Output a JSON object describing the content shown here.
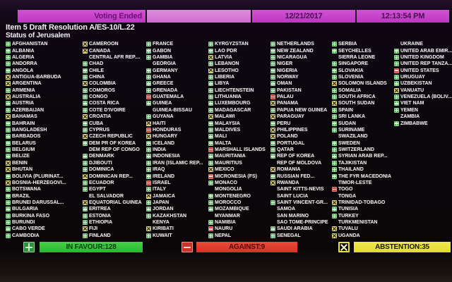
{
  "top_bar": {
    "status": "Voting Ended",
    "date": "12/21/2017",
    "time": "12:13:54 PM"
  },
  "header": {
    "title": "Item 5 Draft Resolution A/ES-10/L.22",
    "subtitle": "Status of Jerusalem"
  },
  "vote_legend": {
    "Y": "in-favour",
    "N": "against",
    "A": "abstention",
    "": "no-vote"
  },
  "colors": {
    "bar_magenta": "#c33cc7",
    "favour_green": "#2fc42f",
    "against_red": "#e1392b",
    "abstention_yellow": "#eae23e"
  },
  "summary": {
    "in_favour_label": "IN FAVOUR:128",
    "against_label": "AGAINST:9",
    "abstention_label": "ABSTENTION:35",
    "in_favour_count": 128,
    "against_count": 9,
    "abstention_count": 35
  },
  "countries": [
    {
      "name": "AFGHANISTAN",
      "vote": "Y"
    },
    {
      "name": "ALBANIA",
      "vote": "Y"
    },
    {
      "name": "ALGERIA",
      "vote": "Y"
    },
    {
      "name": "ANDORRA",
      "vote": "Y"
    },
    {
      "name": "ANGOLA",
      "vote": "Y"
    },
    {
      "name": "ANTIGUA-BARBUDA",
      "vote": "A"
    },
    {
      "name": "ARGENTINA",
      "vote": "A"
    },
    {
      "name": "ARMENIA",
      "vote": "Y"
    },
    {
      "name": "AUSTRALIA",
      "vote": "A"
    },
    {
      "name": "AUSTRIA",
      "vote": "Y"
    },
    {
      "name": "AZERBAIJAN",
      "vote": "Y"
    },
    {
      "name": "BAHAMAS",
      "vote": "A"
    },
    {
      "name": "BAHRAIN",
      "vote": "Y"
    },
    {
      "name": "BANGLADESH",
      "vote": "Y"
    },
    {
      "name": "BARBADOS",
      "vote": "Y"
    },
    {
      "name": "BELARUS",
      "vote": "Y"
    },
    {
      "name": "BELGIUM",
      "vote": "Y"
    },
    {
      "name": "BELIZE",
      "vote": "Y"
    },
    {
      "name": "BENIN",
      "vote": "A"
    },
    {
      "name": "BHUTAN",
      "vote": "A"
    },
    {
      "name": "BOLIVIA (PLURINAT...",
      "vote": "Y"
    },
    {
      "name": "BOSNIA-HERZEGOVI...",
      "vote": "A"
    },
    {
      "name": "BOTSWANA",
      "vote": "Y"
    },
    {
      "name": "BRAZIL",
      "vote": "Y"
    },
    {
      "name": "BRUNEI DARUSSAL...",
      "vote": "Y"
    },
    {
      "name": "BULGARIA",
      "vote": "Y"
    },
    {
      "name": "BURKINA FASO",
      "vote": "Y"
    },
    {
      "name": "BURUNDI",
      "vote": "Y"
    },
    {
      "name": "CABO VERDE",
      "vote": "Y"
    },
    {
      "name": "CAMBODIA",
      "vote": "Y"
    },
    {
      "name": "CAMEROON",
      "vote": "A"
    },
    {
      "name": "CANADA",
      "vote": "A"
    },
    {
      "name": "CENTRAL AFR REP....",
      "vote": ""
    },
    {
      "name": "CHAD",
      "vote": "Y"
    },
    {
      "name": "CHILE",
      "vote": "Y"
    },
    {
      "name": "CHINA",
      "vote": "Y"
    },
    {
      "name": "COLOMBIA",
      "vote": "A"
    },
    {
      "name": "COMOROS",
      "vote": "Y"
    },
    {
      "name": "CONGO",
      "vote": "Y"
    },
    {
      "name": "COSTA RICA",
      "vote": "Y"
    },
    {
      "name": "COTE D'IVOIRE",
      "vote": "Y"
    },
    {
      "name": "CROATIA",
      "vote": "A"
    },
    {
      "name": "CUBA",
      "vote": "Y"
    },
    {
      "name": "CYPRUS",
      "vote": "Y"
    },
    {
      "name": "CZECH REPUBLIC",
      "vote": "A"
    },
    {
      "name": "DEM PR OF KOREA",
      "vote": "Y"
    },
    {
      "name": "DEM REP OF CONGO",
      "vote": ""
    },
    {
      "name": "DENMARK",
      "vote": "Y"
    },
    {
      "name": "DJIBOUTI",
      "vote": "Y"
    },
    {
      "name": "DOMINICA",
      "vote": "Y"
    },
    {
      "name": "DOMINICAN REP...",
      "vote": "A"
    },
    {
      "name": "ECUADOR",
      "vote": "Y"
    },
    {
      "name": "EGYPT",
      "vote": "Y"
    },
    {
      "name": "EL SALVADOR",
      "vote": ""
    },
    {
      "name": "EQUATORIAL GUINEA",
      "vote": "A"
    },
    {
      "name": "ERITREA",
      "vote": "Y"
    },
    {
      "name": "ESTONIA",
      "vote": "Y"
    },
    {
      "name": "ETHIOPIA",
      "vote": "Y"
    },
    {
      "name": "FIJI",
      "vote": "A"
    },
    {
      "name": "FINLAND",
      "vote": "Y"
    },
    {
      "name": "FRANCE",
      "vote": "Y"
    },
    {
      "name": "GABON",
      "vote": "Y"
    },
    {
      "name": "GAMBIA",
      "vote": "Y"
    },
    {
      "name": "GEORGIA",
      "vote": ""
    },
    {
      "name": "GERMANY",
      "vote": "Y"
    },
    {
      "name": "GHANA",
      "vote": "Y"
    },
    {
      "name": "GREECE",
      "vote": "Y"
    },
    {
      "name": "GRENADA",
      "vote": "Y"
    },
    {
      "name": "GUATEMALA",
      "vote": "N"
    },
    {
      "name": "GUINEA",
      "vote": "Y"
    },
    {
      "name": "GUINEA-BISSAU",
      "vote": ""
    },
    {
      "name": "GUYANA",
      "vote": "Y"
    },
    {
      "name": "HAITI",
      "vote": "A"
    },
    {
      "name": "HONDURAS",
      "vote": "N"
    },
    {
      "name": "HUNGARY",
      "vote": "A"
    },
    {
      "name": "ICELAND",
      "vote": "Y"
    },
    {
      "name": "INDIA",
      "vote": "Y"
    },
    {
      "name": "INDONESIA",
      "vote": "Y"
    },
    {
      "name": "IRAN (ISLAMIC REP...",
      "vote": "Y"
    },
    {
      "name": "IRAQ",
      "vote": "Y"
    },
    {
      "name": "IRELAND",
      "vote": "Y"
    },
    {
      "name": "ISRAEL",
      "vote": "N"
    },
    {
      "name": "ITALY",
      "vote": "Y"
    },
    {
      "name": "JAMAICA",
      "vote": "A"
    },
    {
      "name": "JAPAN",
      "vote": "Y"
    },
    {
      "name": "JORDAN",
      "vote": "Y"
    },
    {
      "name": "KAZAKHSTAN",
      "vote": "Y"
    },
    {
      "name": "KENYA",
      "vote": ""
    },
    {
      "name": "KIRIBATI",
      "vote": "A"
    },
    {
      "name": "KUWAIT",
      "vote": "Y"
    },
    {
      "name": "KYRGYZSTAN",
      "vote": "Y"
    },
    {
      "name": "LAO PDR",
      "vote": "Y"
    },
    {
      "name": "LATVIA",
      "vote": "A"
    },
    {
      "name": "LEBANON",
      "vote": "Y"
    },
    {
      "name": "LESOTHO",
      "vote": "A"
    },
    {
      "name": "LIBERIA",
      "vote": "Y"
    },
    {
      "name": "LIBYA",
      "vote": "Y"
    },
    {
      "name": "LIECHTENSTEIN",
      "vote": "Y"
    },
    {
      "name": "LITHUANIA",
      "vote": "Y"
    },
    {
      "name": "LUXEMBOURG",
      "vote": "Y"
    },
    {
      "name": "MADAGASCAR",
      "vote": "Y"
    },
    {
      "name": "MALAWI",
      "vote": "A"
    },
    {
      "name": "MALAYSIA",
      "vote": "Y"
    },
    {
      "name": "MALDIVES",
      "vote": "Y"
    },
    {
      "name": "MALI",
      "vote": "Y"
    },
    {
      "name": "MALTA",
      "vote": "Y"
    },
    {
      "name": "MARSHALL ISLANDS",
      "vote": "N"
    },
    {
      "name": "MAURITANIA",
      "vote": "Y"
    },
    {
      "name": "MAURITIUS",
      "vote": "Y"
    },
    {
      "name": "MEXICO",
      "vote": "A"
    },
    {
      "name": "MICRONESIA (FS)",
      "vote": "N"
    },
    {
      "name": "MONACO",
      "vote": "Y"
    },
    {
      "name": "MONGOLIA",
      "vote": ""
    },
    {
      "name": "MONTENEGRO",
      "vote": "Y"
    },
    {
      "name": "MOROCCO",
      "vote": "Y"
    },
    {
      "name": "MOZAMBIQUE",
      "vote": "Y"
    },
    {
      "name": "MYANMAR",
      "vote": ""
    },
    {
      "name": "NAMIBIA",
      "vote": "Y"
    },
    {
      "name": "NAURU",
      "vote": "N"
    },
    {
      "name": "NEPAL",
      "vote": "Y"
    },
    {
      "name": "NETHERLANDS",
      "vote": "Y"
    },
    {
      "name": "NEW ZEALAND",
      "vote": "Y"
    },
    {
      "name": "NICARAGUA",
      "vote": "Y"
    },
    {
      "name": "NIGER",
      "vote": "Y"
    },
    {
      "name": "NIGERIA",
      "vote": "Y"
    },
    {
      "name": "NORWAY",
      "vote": "Y"
    },
    {
      "name": "OMAN",
      "vote": "Y"
    },
    {
      "name": "PAKISTAN",
      "vote": "Y"
    },
    {
      "name": "PALAU",
      "vote": "N"
    },
    {
      "name": "PANAMA",
      "vote": "A"
    },
    {
      "name": "PAPUA NEW GUINEA",
      "vote": "Y"
    },
    {
      "name": "PARAGUAY",
      "vote": "A"
    },
    {
      "name": "PERU",
      "vote": "Y"
    },
    {
      "name": "PHILIPPINES",
      "vote": "A"
    },
    {
      "name": "POLAND",
      "vote": "A"
    },
    {
      "name": "PORTUGAL",
      "vote": "Y"
    },
    {
      "name": "QATAR",
      "vote": "Y"
    },
    {
      "name": "REP OF KOREA",
      "vote": "Y"
    },
    {
      "name": "REP OF MOLDOVA",
      "vote": ""
    },
    {
      "name": "ROMANIA",
      "vote": "A"
    },
    {
      "name": "RUSSIAN FED...",
      "vote": "Y"
    },
    {
      "name": "RWANDA",
      "vote": "A"
    },
    {
      "name": "SAINT KITTS-NEVIS",
      "vote": ""
    },
    {
      "name": "SAINT LUCIA",
      "vote": ""
    },
    {
      "name": "SAINT VINCENT-GR...",
      "vote": "Y"
    },
    {
      "name": "SAMOA",
      "vote": ""
    },
    {
      "name": "SAN MARINO",
      "vote": ""
    },
    {
      "name": "SAO TOME-PRINCIPE",
      "vote": ""
    },
    {
      "name": "SAUDI ARABIA",
      "vote": "Y"
    },
    {
      "name": "SENEGAL",
      "vote": "Y"
    },
    {
      "name": "SERBIA",
      "vote": "Y"
    },
    {
      "name": "SEYCHELLES",
      "vote": "Y"
    },
    {
      "name": "SIERRA LEONE",
      "vote": ""
    },
    {
      "name": "SINGAPORE",
      "vote": "Y"
    },
    {
      "name": "SLOVAKIA",
      "vote": "Y"
    },
    {
      "name": "SLOVENIA",
      "vote": "Y"
    },
    {
      "name": "SOLOMON ISLANDS",
      "vote": "A"
    },
    {
      "name": "SOMALIA",
      "vote": "Y"
    },
    {
      "name": "SOUTH AFRICA",
      "vote": "Y"
    },
    {
      "name": "SOUTH SUDAN",
      "vote": "A"
    },
    {
      "name": "SPAIN",
      "vote": "Y"
    },
    {
      "name": "SRI LANKA",
      "vote": "Y"
    },
    {
      "name": "SUDAN",
      "vote": "Y"
    },
    {
      "name": "SURINAME",
      "vote": "Y"
    },
    {
      "name": "SWAZILAND",
      "vote": ""
    },
    {
      "name": "SWEDEN",
      "vote": "Y"
    },
    {
      "name": "SWITZERLAND",
      "vote": "Y"
    },
    {
      "name": "SYRIAN ARAB REP...",
      "vote": "Y"
    },
    {
      "name": "TAJIKISTAN",
      "vote": "Y"
    },
    {
      "name": "THAILAND",
      "vote": "Y"
    },
    {
      "name": "THE FYR MACEDONIA",
      "vote": "Y"
    },
    {
      "name": "TIMOR-LESTE",
      "vote": ""
    },
    {
      "name": "TOGO",
      "vote": "N"
    },
    {
      "name": "TONGA",
      "vote": ""
    },
    {
      "name": "TRINIDAD-TOBAGO",
      "vote": "A"
    },
    {
      "name": "TUNISIA",
      "vote": "Y"
    },
    {
      "name": "TURKEY",
      "vote": "Y"
    },
    {
      "name": "TURKMENISTAN",
      "vote": ""
    },
    {
      "name": "TUVALU",
      "vote": "A"
    },
    {
      "name": "UGANDA",
      "vote": "A"
    },
    {
      "name": "UKRAINE",
      "vote": ""
    },
    {
      "name": "UNITED ARAB EMIR...",
      "vote": "Y"
    },
    {
      "name": "UNITED KINGDOM",
      "vote": "Y"
    },
    {
      "name": "UNITED REP TANZA...",
      "vote": "Y"
    },
    {
      "name": "UNITED STATES",
      "vote": "N"
    },
    {
      "name": "URUGUAY",
      "vote": "Y"
    },
    {
      "name": "UZBEKISTAN",
      "vote": "Y"
    },
    {
      "name": "VANUATU",
      "vote": "A"
    },
    {
      "name": "VENEZUELA (BOLIV...",
      "vote": "Y"
    },
    {
      "name": "VIET NAM",
      "vote": "Y"
    },
    {
      "name": "YEMEN",
      "vote": "Y"
    },
    {
      "name": "ZAMBIA",
      "vote": ""
    },
    {
      "name": "ZIMBABWE",
      "vote": "Y"
    }
  ]
}
